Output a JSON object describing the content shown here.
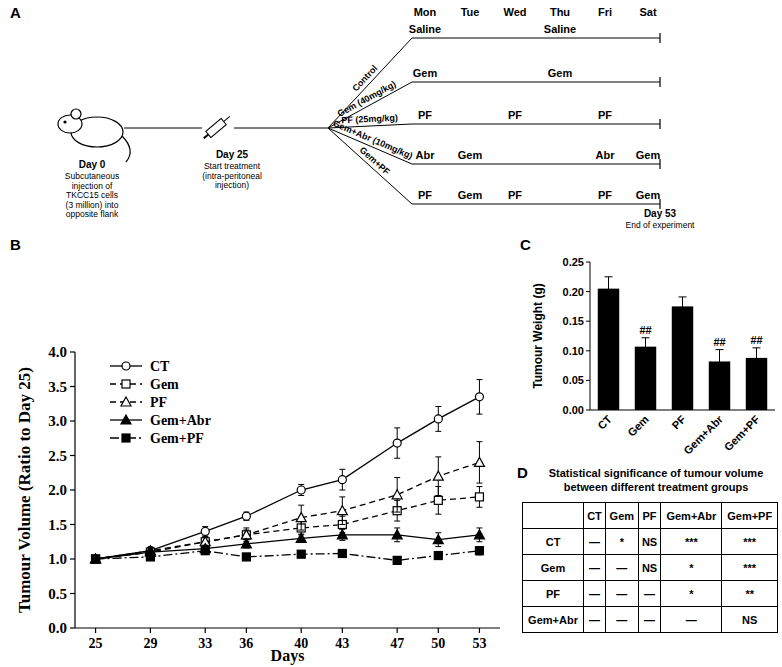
{
  "panels": [
    "A",
    "B",
    "C",
    "D"
  ],
  "diagram": {
    "days": [
      "Mon",
      "Tue",
      "Wed",
      "Thu",
      "Fri",
      "Sat"
    ],
    "start": {
      "label": "Day 0",
      "text": [
        "Subcutaneous",
        "injection of",
        "TKCC15 cells",
        "(3 million) into",
        "opposite flank"
      ]
    },
    "treatment_start": {
      "label": "Day 25",
      "text": [
        "Start treatment",
        "(intra-peritoneal",
        "injection)"
      ]
    },
    "end": {
      "label": "Day 53",
      "text": "End of experiment"
    },
    "groups": [
      {
        "label": "Control",
        "events": [
          "Saline",
          null,
          null,
          "Saline",
          null,
          null
        ]
      },
      {
        "label": "Gem (40mg/kg)",
        "events": [
          "Gem",
          null,
          null,
          "Gem",
          null,
          null
        ]
      },
      {
        "label": "PF (25mg/kg)",
        "events": [
          "PF",
          null,
          "PF",
          null,
          "PF",
          null
        ]
      },
      {
        "label": "Gem+Abr (10mg/kg)",
        "events": [
          "Abr",
          "Gem",
          null,
          null,
          "Abr",
          "Gem"
        ]
      },
      {
        "label": "Gem+PF",
        "events": [
          "PF",
          "Gem",
          "PF",
          null,
          "PF",
          "Gem"
        ]
      }
    ]
  },
  "chart_data": [
    {
      "type": "line",
      "xlabel": "Days",
      "ylabel": "Tumour Volume (Ratio to Day 25)",
      "x": [
        25,
        29,
        33,
        36,
        40,
        43,
        47,
        50,
        53
      ],
      "xlim": [
        23.5,
        54.5
      ],
      "xticks": [
        25,
        29,
        33,
        36,
        40,
        43,
        47,
        50,
        53
      ],
      "ylim": [
        0,
        4
      ],
      "yticks": [
        {
          "value": 0,
          "label": "0.0"
        },
        {
          "value": 0.5,
          "label": "0.5"
        },
        {
          "value": 1,
          "label": "1.0"
        },
        {
          "value": 1.5,
          "label": "1.5"
        },
        {
          "value": 2,
          "label": "2.0"
        },
        {
          "value": 2.5,
          "label": "2.5"
        },
        {
          "value": 3,
          "label": "3.0"
        },
        {
          "value": 3.5,
          "label": "3.5"
        },
        {
          "value": 4,
          "label": "4.0"
        }
      ],
      "legend": "upper left",
      "series": [
        {
          "name": "CT",
          "color": "#000000",
          "marker": "circle-open",
          "line_style": "solid",
          "values": [
            1.0,
            1.12,
            1.4,
            1.62,
            2.0,
            2.15,
            2.68,
            3.03,
            3.35
          ],
          "errors": [
            0.02,
            0.05,
            0.07,
            0.06,
            0.08,
            0.15,
            0.22,
            0.18,
            0.25
          ]
        },
        {
          "name": "Gem",
          "color": "#000000",
          "marker": "square-open",
          "line_style": "dashed",
          "values": [
            1.0,
            1.1,
            1.25,
            1.35,
            1.45,
            1.5,
            1.7,
            1.85,
            1.9
          ],
          "errors": [
            0.02,
            0.04,
            0.06,
            0.07,
            0.1,
            0.12,
            0.15,
            0.2,
            0.15
          ]
        },
        {
          "name": "PF",
          "color": "#000000",
          "marker": "triangle-open",
          "line_style": "dashed",
          "values": [
            1.0,
            1.12,
            1.25,
            1.35,
            1.6,
            1.7,
            1.93,
            2.2,
            2.4
          ],
          "errors": [
            0.02,
            0.05,
            0.08,
            0.1,
            0.18,
            0.2,
            0.25,
            0.28,
            0.3
          ]
        },
        {
          "name": "Gem+Abr",
          "color": "#000000",
          "marker": "triangle",
          "line_style": "solid",
          "values": [
            1.0,
            1.1,
            1.15,
            1.22,
            1.3,
            1.35,
            1.35,
            1.28,
            1.35
          ],
          "errors": [
            0.02,
            0.03,
            0.05,
            0.06,
            0.06,
            0.08,
            0.1,
            0.1,
            0.1
          ]
        },
        {
          "name": "Gem+PF",
          "color": "#000000",
          "marker": "square",
          "line_style": "dashdot",
          "values": [
            1.0,
            1.03,
            1.12,
            1.03,
            1.07,
            1.08,
            0.98,
            1.05,
            1.12
          ],
          "errors": [
            0.02,
            0.03,
            0.05,
            0.03,
            0.04,
            0.04,
            0.03,
            0.05,
            0.06
          ]
        }
      ]
    },
    {
      "type": "bar",
      "ylabel": "Tumour Weight (g)",
      "categories": [
        "CT",
        "Gem",
        "PF",
        "Gem+Abr",
        "Gem+PF"
      ],
      "values": [
        0.205,
        0.107,
        0.175,
        0.082,
        0.088
      ],
      "errors": [
        0.02,
        0.015,
        0.016,
        0.02,
        0.017
      ],
      "annotations": [
        null,
        "##",
        null,
        "##",
        "##"
      ],
      "color": "#000000",
      "ylim": [
        0,
        0.25
      ],
      "yticks": [
        {
          "value": 0,
          "label": "0.00"
        },
        {
          "value": 0.05,
          "label": "0.05"
        },
        {
          "value": 0.1,
          "label": "0.10"
        },
        {
          "value": 0.15,
          "label": "0.15"
        },
        {
          "value": 0.2,
          "label": "0.20"
        },
        {
          "value": 0.25,
          "label": "0.25"
        }
      ]
    }
  ],
  "table": {
    "title": "Statistical significance of tumour volume between different treatment groups",
    "header": [
      null,
      "CT",
      "Gem",
      "PF",
      "Gem+Abr",
      "Gem+PF"
    ],
    "rows": [
      [
        "CT",
        "—",
        "*",
        "NS",
        "***",
        "***"
      ],
      [
        "Gem",
        "—",
        "—",
        "NS",
        "*",
        "***"
      ],
      [
        "PF",
        "—",
        "—",
        "—",
        "*",
        "**"
      ],
      [
        "Gem+Abr",
        "—",
        "—",
        "—",
        "—",
        "NS"
      ]
    ]
  }
}
